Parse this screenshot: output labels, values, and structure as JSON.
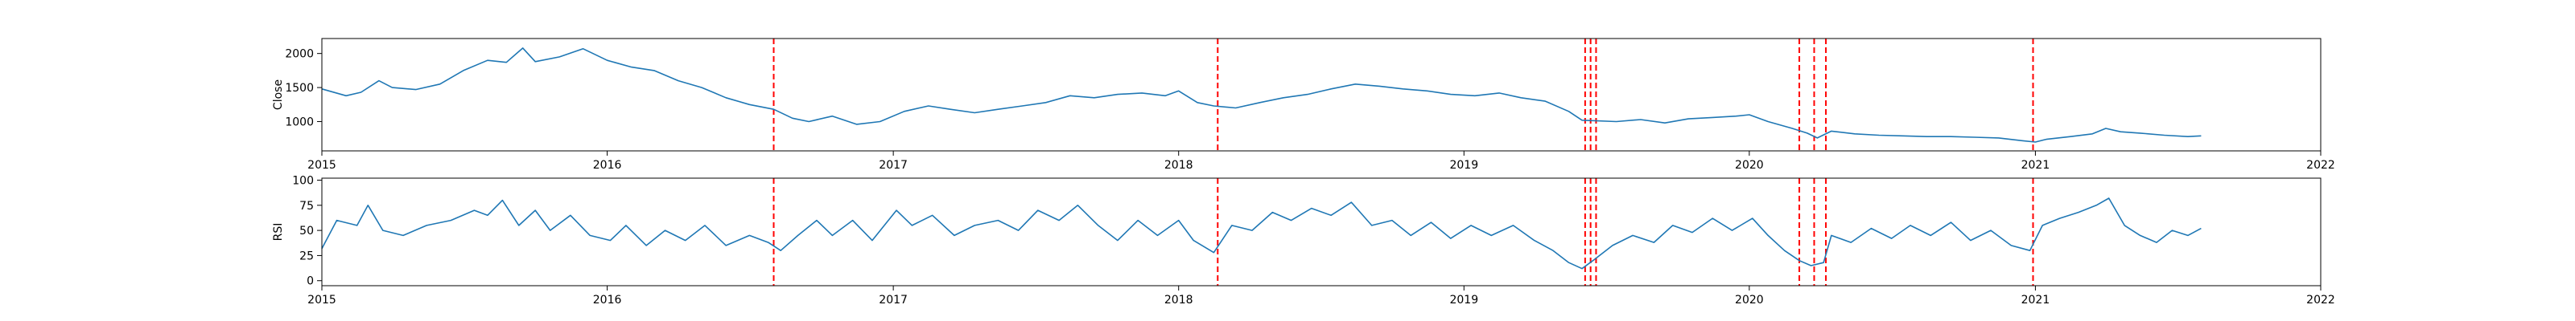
{
  "colors": {
    "series": "#1f77b4",
    "event_lines": "#ff0000",
    "axes": "#000000",
    "background": "#ffffff"
  },
  "chart_data": [
    {
      "type": "line",
      "title": "",
      "xlabel": "",
      "ylabel": "Close",
      "xlim": [
        "2015-01-01",
        "2022-01-01"
      ],
      "ylim": [
        570,
        2220
      ],
      "x_ticks": [
        "2015",
        "2016",
        "2017",
        "2018",
        "2019",
        "2020",
        "2021",
        "2022"
      ],
      "y_ticks": [
        1000,
        1500,
        2000
      ],
      "grid": false,
      "legend": "none",
      "series": [
        {
          "points": [
            [
              "2015-01-01",
              1480
            ],
            [
              "2015-02-01",
              1380
            ],
            [
              "2015-02-20",
              1430
            ],
            [
              "2015-03-15",
              1600
            ],
            [
              "2015-04-01",
              1500
            ],
            [
              "2015-05-01",
              1470
            ],
            [
              "2015-06-01",
              1550
            ],
            [
              "2015-07-01",
              1750
            ],
            [
              "2015-08-01",
              1900
            ],
            [
              "2015-08-25",
              1870
            ],
            [
              "2015-09-15",
              2080
            ],
            [
              "2015-10-01",
              1880
            ],
            [
              "2015-11-01",
              1950
            ],
            [
              "2015-12-01",
              2070
            ],
            [
              "2016-01-01",
              1900
            ],
            [
              "2016-02-01",
              1800
            ],
            [
              "2016-03-01",
              1750
            ],
            [
              "2016-04-01",
              1600
            ],
            [
              "2016-05-01",
              1500
            ],
            [
              "2016-06-01",
              1350
            ],
            [
              "2016-07-01",
              1250
            ],
            [
              "2016-08-01",
              1180
            ],
            [
              "2016-08-25",
              1050
            ],
            [
              "2016-09-15",
              1000
            ],
            [
              "2016-10-15",
              1080
            ],
            [
              "2016-11-15",
              960
            ],
            [
              "2016-12-15",
              1000
            ],
            [
              "2017-01-15",
              1150
            ],
            [
              "2017-02-15",
              1230
            ],
            [
              "2017-03-15",
              1180
            ],
            [
              "2017-04-15",
              1130
            ],
            [
              "2017-05-15",
              1180
            ],
            [
              "2017-06-15",
              1230
            ],
            [
              "2017-07-15",
              1280
            ],
            [
              "2017-08-15",
              1380
            ],
            [
              "2017-09-15",
              1350
            ],
            [
              "2017-10-15",
              1400
            ],
            [
              "2017-11-15",
              1420
            ],
            [
              "2017-12-15",
              1380
            ],
            [
              "2018-01-01",
              1450
            ],
            [
              "2018-01-25",
              1280
            ],
            [
              "2018-02-15",
              1230
            ],
            [
              "2018-03-15",
              1200
            ],
            [
              "2018-04-15",
              1280
            ],
            [
              "2018-05-15",
              1350
            ],
            [
              "2018-06-15",
              1400
            ],
            [
              "2018-07-15",
              1480
            ],
            [
              "2018-08-15",
              1550
            ],
            [
              "2018-09-15",
              1520
            ],
            [
              "2018-10-15",
              1480
            ],
            [
              "2018-11-15",
              1450
            ],
            [
              "2018-12-15",
              1400
            ],
            [
              "2019-01-15",
              1380
            ],
            [
              "2019-02-15",
              1420
            ],
            [
              "2019-03-15",
              1350
            ],
            [
              "2019-04-15",
              1300
            ],
            [
              "2019-05-15",
              1150
            ],
            [
              "2019-06-01",
              1020
            ],
            [
              "2019-07-15",
              1000
            ],
            [
              "2019-08-15",
              1030
            ],
            [
              "2019-09-15",
              980
            ],
            [
              "2019-10-15",
              1040
            ],
            [
              "2019-11-15",
              1060
            ],
            [
              "2019-12-15",
              1080
            ],
            [
              "2020-01-01",
              1100
            ],
            [
              "2020-01-25",
              1000
            ],
            [
              "2020-02-25",
              900
            ],
            [
              "2020-03-15",
              830
            ],
            [
              "2020-03-28",
              760
            ],
            [
              "2020-04-15",
              860
            ],
            [
              "2020-05-15",
              820
            ],
            [
              "2020-06-15",
              800
            ],
            [
              "2020-07-15",
              790
            ],
            [
              "2020-08-15",
              780
            ],
            [
              "2020-09-15",
              780
            ],
            [
              "2020-10-15",
              770
            ],
            [
              "2020-11-15",
              760
            ],
            [
              "2020-12-15",
              720
            ],
            [
              "2021-01-01",
              700
            ],
            [
              "2021-01-15",
              740
            ],
            [
              "2021-02-15",
              780
            ],
            [
              "2021-03-15",
              820
            ],
            [
              "2021-04-01",
              900
            ],
            [
              "2021-04-20",
              850
            ],
            [
              "2021-05-15",
              830
            ],
            [
              "2021-06-15",
              800
            ],
            [
              "2021-07-15",
              780
            ],
            [
              "2021-08-01",
              790
            ]
          ]
        }
      ],
      "event_lines": [
        "2016-08-01",
        "2018-02-20",
        "2019-06-05",
        "2019-06-12",
        "2019-06-19",
        "2020-03-05",
        "2020-03-24",
        "2020-04-08",
        "2020-12-29"
      ]
    },
    {
      "type": "line",
      "title": "",
      "xlabel": "",
      "ylabel": "RSI",
      "xlim": [
        "2015-01-01",
        "2022-01-01"
      ],
      "ylim": [
        -5,
        102
      ],
      "x_ticks": [
        "2015",
        "2016",
        "2017",
        "2018",
        "2019",
        "2020",
        "2021",
        "2022"
      ],
      "y_ticks": [
        0,
        25,
        50,
        75,
        100
      ],
      "grid": false,
      "legend": "none",
      "series": [
        {
          "points": [
            [
              "2015-01-01",
              32
            ],
            [
              "2015-01-20",
              60
            ],
            [
              "2015-02-15",
              55
            ],
            [
              "2015-03-01",
              75
            ],
            [
              "2015-03-20",
              50
            ],
            [
              "2015-04-15",
              45
            ],
            [
              "2015-05-15",
              55
            ],
            [
              "2015-06-15",
              60
            ],
            [
              "2015-07-15",
              70
            ],
            [
              "2015-08-01",
              65
            ],
            [
              "2015-08-20",
              80
            ],
            [
              "2015-09-10",
              55
            ],
            [
              "2015-10-01",
              70
            ],
            [
              "2015-10-20",
              50
            ],
            [
              "2015-11-15",
              65
            ],
            [
              "2015-12-10",
              45
            ],
            [
              "2016-01-05",
              40
            ],
            [
              "2016-01-25",
              55
            ],
            [
              "2016-02-20",
              35
            ],
            [
              "2016-03-15",
              50
            ],
            [
              "2016-04-10",
              40
            ],
            [
              "2016-05-05",
              55
            ],
            [
              "2016-06-01",
              35
            ],
            [
              "2016-07-01",
              45
            ],
            [
              "2016-07-25",
              38
            ],
            [
              "2016-08-10",
              30
            ],
            [
              "2016-09-01",
              45
            ],
            [
              "2016-09-25",
              60
            ],
            [
              "2016-10-15",
              45
            ],
            [
              "2016-11-10",
              60
            ],
            [
              "2016-12-05",
              40
            ],
            [
              "2017-01-05",
              70
            ],
            [
              "2017-01-25",
              55
            ],
            [
              "2017-02-20",
              65
            ],
            [
              "2017-03-20",
              45
            ],
            [
              "2017-04-15",
              55
            ],
            [
              "2017-05-15",
              60
            ],
            [
              "2017-06-10",
              50
            ],
            [
              "2017-07-05",
              70
            ],
            [
              "2017-08-01",
              60
            ],
            [
              "2017-08-25",
              75
            ],
            [
              "2017-09-20",
              55
            ],
            [
              "2017-10-15",
              40
            ],
            [
              "2017-11-10",
              60
            ],
            [
              "2017-12-05",
              45
            ],
            [
              "2018-01-01",
              60
            ],
            [
              "2018-01-20",
              40
            ],
            [
              "2018-02-15",
              28
            ],
            [
              "2018-03-10",
              55
            ],
            [
              "2018-04-05",
              50
            ],
            [
              "2018-05-01",
              68
            ],
            [
              "2018-05-25",
              60
            ],
            [
              "2018-06-20",
              72
            ],
            [
              "2018-07-15",
              65
            ],
            [
              "2018-08-10",
              78
            ],
            [
              "2018-09-05",
              55
            ],
            [
              "2018-10-01",
              60
            ],
            [
              "2018-10-25",
              45
            ],
            [
              "2018-11-20",
              58
            ],
            [
              "2018-12-15",
              42
            ],
            [
              "2019-01-10",
              55
            ],
            [
              "2019-02-05",
              45
            ],
            [
              "2019-03-05",
              55
            ],
            [
              "2019-04-01",
              40
            ],
            [
              "2019-04-25",
              30
            ],
            [
              "2019-05-15",
              18
            ],
            [
              "2019-06-01",
              12
            ],
            [
              "2019-06-15",
              20
            ],
            [
              "2019-07-10",
              35
            ],
            [
              "2019-08-05",
              45
            ],
            [
              "2019-09-01",
              38
            ],
            [
              "2019-09-25",
              55
            ],
            [
              "2019-10-20",
              48
            ],
            [
              "2019-11-15",
              62
            ],
            [
              "2019-12-10",
              50
            ],
            [
              "2020-01-05",
              62
            ],
            [
              "2020-01-25",
              45
            ],
            [
              "2020-02-15",
              30
            ],
            [
              "2020-03-05",
              20
            ],
            [
              "2020-03-20",
              15
            ],
            [
              "2020-04-05",
              18
            ],
            [
              "2020-04-15",
              45
            ],
            [
              "2020-05-10",
              38
            ],
            [
              "2020-06-05",
              52
            ],
            [
              "2020-07-01",
              42
            ],
            [
              "2020-07-25",
              55
            ],
            [
              "2020-08-20",
              45
            ],
            [
              "2020-09-15",
              58
            ],
            [
              "2020-10-10",
              40
            ],
            [
              "2020-11-05",
              50
            ],
            [
              "2020-12-01",
              35
            ],
            [
              "2020-12-25",
              30
            ],
            [
              "2021-01-10",
              55
            ],
            [
              "2021-02-01",
              62
            ],
            [
              "2021-02-25",
              68
            ],
            [
              "2021-03-20",
              75
            ],
            [
              "2021-04-05",
              82
            ],
            [
              "2021-04-25",
              55
            ],
            [
              "2021-05-15",
              45
            ],
            [
              "2021-06-05",
              38
            ],
            [
              "2021-06-25",
              50
            ],
            [
              "2021-07-15",
              45
            ],
            [
              "2021-08-01",
              52
            ]
          ]
        }
      ],
      "event_lines": [
        "2016-08-01",
        "2018-02-20",
        "2019-06-05",
        "2019-06-12",
        "2019-06-19",
        "2020-03-05",
        "2020-03-24",
        "2020-04-08",
        "2020-12-29"
      ]
    }
  ]
}
